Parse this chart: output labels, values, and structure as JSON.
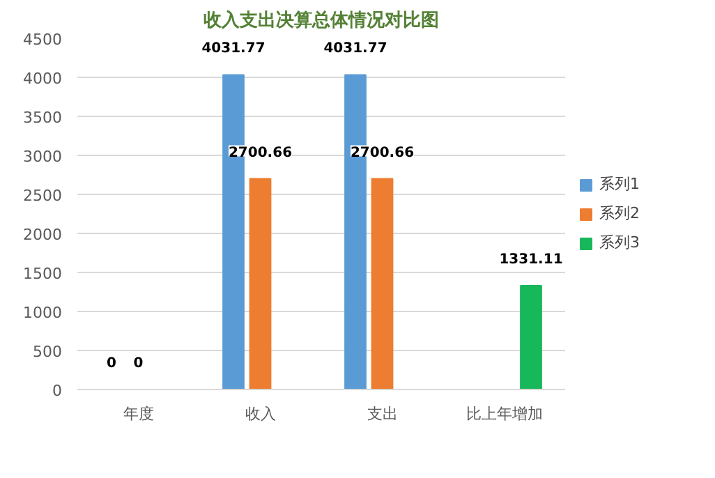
{
  "chart_data": {
    "type": "bar",
    "title": "收入支出决算总体情况对比图",
    "categories": [
      "年度",
      "收入",
      "支出",
      "比上年增加"
    ],
    "series": [
      {
        "name": "系列1",
        "color": "#5b9bd5",
        "values": [
          0,
          4031.77,
          4031.77,
          null
        ]
      },
      {
        "name": "系列2",
        "color": "#ed7d31",
        "values": [
          0,
          2700.66,
          2700.66,
          null
        ]
      },
      {
        "name": "系列3",
        "color": "#17b85a",
        "values": [
          null,
          null,
          null,
          1331.11
        ]
      }
    ],
    "ylim": [
      0,
      4500
    ],
    "yticks": [
      0,
      500,
      1000,
      1500,
      2000,
      2500,
      3000,
      3500,
      4000,
      4500
    ],
    "grid": "y",
    "legend": "right",
    "data_labels": true
  }
}
